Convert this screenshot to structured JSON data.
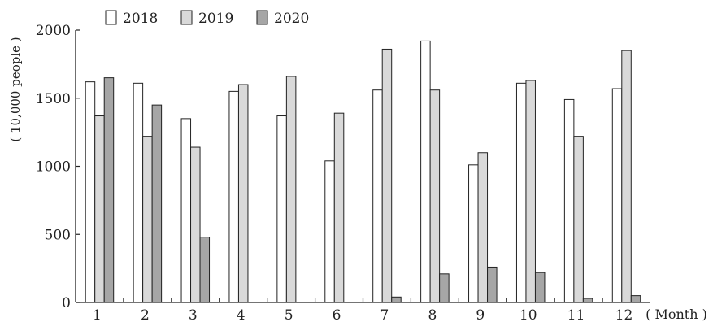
{
  "chart_data": {
    "type": "bar",
    "title": "",
    "ylabel": "( 10,000 people )",
    "xlabel": "( Month )",
    "categories": [
      "1",
      "2",
      "3",
      "4",
      "5",
      "6",
      "7",
      "8",
      "9",
      "10",
      "11",
      "12"
    ],
    "series": [
      {
        "name": "2018",
        "color": "#ffffff",
        "values": [
          1620,
          1610,
          1350,
          1550,
          1370,
          1040,
          1560,
          1920,
          1010,
          1610,
          1490,
          1570
        ]
      },
      {
        "name": "2019",
        "color": "#d9d9d9",
        "values": [
          1370,
          1220,
          1140,
          1600,
          1660,
          1390,
          1860,
          1560,
          1100,
          1630,
          1220,
          1850
        ]
      },
      {
        "name": "2020",
        "color": "#a6a6a6",
        "values": [
          1650,
          1450,
          480,
          0,
          0,
          0,
          40,
          210,
          260,
          220,
          30,
          50
        ]
      }
    ],
    "yticks": [
      "0",
      "500",
      "1000",
      "1500",
      "2000"
    ],
    "ylim": [
      0,
      2000
    ],
    "legend_position": "top-left",
    "grid": false
  }
}
